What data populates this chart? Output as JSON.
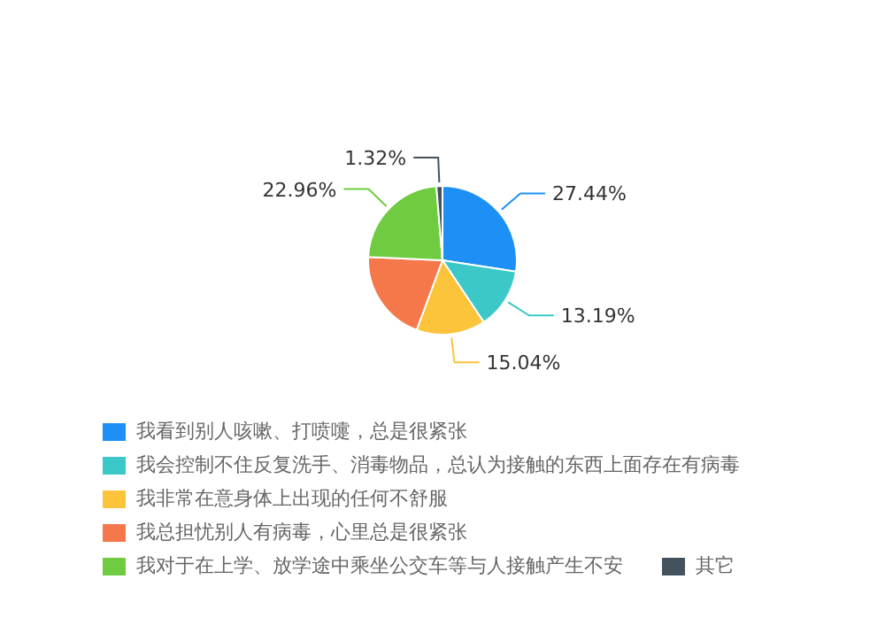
{
  "chart_data": {
    "type": "pie",
    "categories": [
      "我看到别人咳嗽、打喷嚏，总是很紧张",
      "我会控制不住反复洗手、消毒物品，总认为接触的东西上面存在有病毒",
      "我非常在意身体上出现的任何不舒服",
      "我总担忧别人有病毒，心里总是很紧张",
      "我对于在上学、放学途中乘坐公交车等与人接触产生不安",
      "其它"
    ],
    "values": [
      27.44,
      13.19,
      15.04,
      20.05,
      22.96,
      1.32
    ],
    "colors": [
      "#1e90f5",
      "#3cc8c8",
      "#fbc43a",
      "#f5784a",
      "#6fcb3f",
      "#44525e"
    ],
    "value_labels": [
      "27.44%",
      "13.19%",
      "15.04%",
      null,
      "22.96%",
      "1.32%"
    ],
    "legend": "bottom left"
  }
}
